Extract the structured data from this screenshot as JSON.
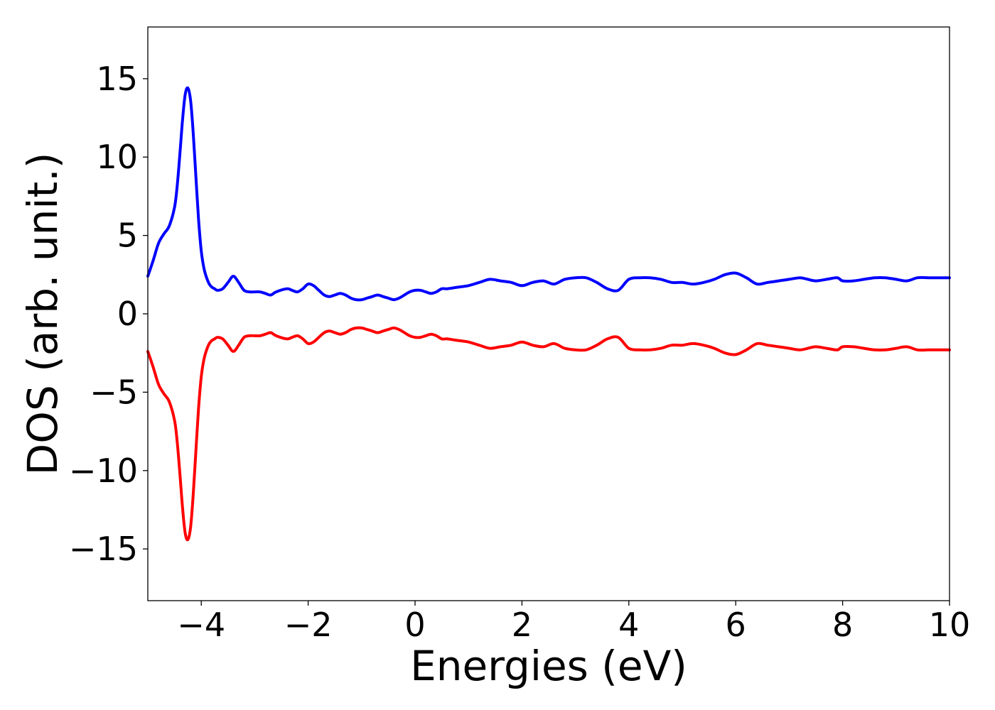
{
  "chart_data": {
    "type": "line",
    "title": "",
    "xlabel": "Energies (eV)",
    "ylabel": "DOS (arb. unit.)",
    "xlim": [
      -5,
      10
    ],
    "ylim": [
      -18.3,
      18.3
    ],
    "xticks": [
      -4,
      -2,
      0,
      2,
      4,
      6,
      8,
      10
    ],
    "xtick_labels": [
      "−4",
      "−2",
      "0",
      "2",
      "4",
      "6",
      "8",
      "10"
    ],
    "yticks": [
      15,
      10,
      5,
      0,
      -5,
      -10,
      -15
    ],
    "ytick_labels": [
      "15",
      "10",
      "5",
      "0",
      "−5",
      "−10",
      "−15"
    ],
    "grid": false,
    "series": [
      {
        "color": "#0000ff",
        "x": [
          -5.0,
          -4.9,
          -4.8,
          -4.7,
          -4.6,
          -4.5,
          -4.45,
          -4.4,
          -4.35,
          -4.3,
          -4.25,
          -4.2,
          -4.15,
          -4.1,
          -4.05,
          -4.0,
          -3.95,
          -3.9,
          -3.85,
          -3.8,
          -3.75,
          -3.7,
          -3.6,
          -3.5,
          -3.4,
          -3.3,
          -3.2,
          -3.1,
          -3.0,
          -2.9,
          -2.8,
          -2.7,
          -2.6,
          -2.4,
          -2.3,
          -2.2,
          -2.1,
          -2.0,
          -1.9,
          -1.8,
          -1.7,
          -1.6,
          -1.5,
          -1.4,
          -1.3,
          -1.2,
          -1.1,
          -1.0,
          -0.9,
          -0.8,
          -0.7,
          -0.6,
          -0.5,
          -0.4,
          -0.3,
          -0.2,
          -0.1,
          0.0,
          0.1,
          0.2,
          0.3,
          0.4,
          0.5,
          0.6,
          0.8,
          1.0,
          1.2,
          1.4,
          1.6,
          1.8,
          2.0,
          2.2,
          2.4,
          2.6,
          2.8,
          3.0,
          3.2,
          3.4,
          3.6,
          3.8,
          4.0,
          4.2,
          4.4,
          4.6,
          4.8,
          5.0,
          5.2,
          5.4,
          5.6,
          5.8,
          6.0,
          6.2,
          6.4,
          6.6,
          6.8,
          7.0,
          7.2,
          7.35,
          7.5,
          7.7,
          7.9,
          8.0,
          8.2,
          8.4,
          8.6,
          8.8,
          9.0,
          9.2,
          9.4,
          9.6,
          9.8,
          10.0
        ],
        "y": [
          2.4,
          3.4,
          4.5,
          5.1,
          5.6,
          6.8,
          8.2,
          10.2,
          12.4,
          14.0,
          14.4,
          13.6,
          11.5,
          8.7,
          6.0,
          4.0,
          2.9,
          2.3,
          1.9,
          1.7,
          1.6,
          1.5,
          1.6,
          2.0,
          2.4,
          2.0,
          1.5,
          1.4,
          1.4,
          1.4,
          1.3,
          1.2,
          1.4,
          1.6,
          1.5,
          1.4,
          1.6,
          1.9,
          1.8,
          1.5,
          1.2,
          1.1,
          1.2,
          1.3,
          1.2,
          1.0,
          0.9,
          0.9,
          1.0,
          1.1,
          1.2,
          1.1,
          1.0,
          0.9,
          1.0,
          1.2,
          1.4,
          1.5,
          1.5,
          1.4,
          1.3,
          1.4,
          1.6,
          1.6,
          1.7,
          1.8,
          2.0,
          2.2,
          2.1,
          2.0,
          1.8,
          2.0,
          2.1,
          1.9,
          2.2,
          2.3,
          2.3,
          2.0,
          1.6,
          1.5,
          2.2,
          2.3,
          2.3,
          2.2,
          2.0,
          2.0,
          1.9,
          2.0,
          2.2,
          2.5,
          2.6,
          2.3,
          1.9,
          2.0,
          2.1,
          2.2,
          2.3,
          2.2,
          2.1,
          2.2,
          2.3,
          2.1,
          2.1,
          2.2,
          2.3,
          2.3,
          2.2,
          2.1,
          2.3,
          2.3,
          2.3,
          2.3
        ]
      },
      {
        "color": "#ff0000",
        "x": [
          -5.0,
          -4.9,
          -4.8,
          -4.7,
          -4.6,
          -4.5,
          -4.45,
          -4.4,
          -4.35,
          -4.3,
          -4.25,
          -4.2,
          -4.15,
          -4.1,
          -4.05,
          -4.0,
          -3.95,
          -3.9,
          -3.85,
          -3.8,
          -3.75,
          -3.7,
          -3.6,
          -3.5,
          -3.4,
          -3.3,
          -3.2,
          -3.1,
          -3.0,
          -2.9,
          -2.8,
          -2.7,
          -2.6,
          -2.4,
          -2.3,
          -2.2,
          -2.1,
          -2.0,
          -1.9,
          -1.8,
          -1.7,
          -1.6,
          -1.5,
          -1.4,
          -1.3,
          -1.2,
          -1.1,
          -1.0,
          -0.9,
          -0.8,
          -0.7,
          -0.6,
          -0.5,
          -0.4,
          -0.3,
          -0.2,
          -0.1,
          0.0,
          0.1,
          0.2,
          0.3,
          0.4,
          0.5,
          0.6,
          0.8,
          1.0,
          1.2,
          1.4,
          1.6,
          1.8,
          2.0,
          2.2,
          2.4,
          2.6,
          2.8,
          3.0,
          3.2,
          3.4,
          3.6,
          3.8,
          4.0,
          4.2,
          4.4,
          4.6,
          4.8,
          5.0,
          5.2,
          5.4,
          5.6,
          5.8,
          6.0,
          6.2,
          6.4,
          6.6,
          6.8,
          7.0,
          7.2,
          7.35,
          7.5,
          7.7,
          7.9,
          8.0,
          8.2,
          8.4,
          8.6,
          8.8,
          9.0,
          9.2,
          9.4,
          9.6,
          9.8,
          10.0
        ],
        "y": [
          -2.4,
          -3.4,
          -4.5,
          -5.1,
          -5.6,
          -6.8,
          -8.2,
          -10.2,
          -12.4,
          -14.0,
          -14.4,
          -13.6,
          -11.5,
          -8.7,
          -6.0,
          -4.0,
          -2.9,
          -2.3,
          -1.9,
          -1.7,
          -1.6,
          -1.5,
          -1.6,
          -2.0,
          -2.4,
          -2.0,
          -1.5,
          -1.4,
          -1.4,
          -1.4,
          -1.3,
          -1.2,
          -1.4,
          -1.6,
          -1.5,
          -1.4,
          -1.6,
          -1.9,
          -1.8,
          -1.5,
          -1.2,
          -1.1,
          -1.2,
          -1.3,
          -1.2,
          -1.0,
          -0.9,
          -0.9,
          -1.0,
          -1.1,
          -1.2,
          -1.1,
          -1.0,
          -0.9,
          -1.0,
          -1.2,
          -1.4,
          -1.5,
          -1.5,
          -1.4,
          -1.3,
          -1.4,
          -1.6,
          -1.6,
          -1.7,
          -1.8,
          -2.0,
          -2.2,
          -2.1,
          -2.0,
          -1.8,
          -2.0,
          -2.1,
          -1.9,
          -2.2,
          -2.3,
          -2.3,
          -2.0,
          -1.6,
          -1.5,
          -2.2,
          -2.3,
          -2.3,
          -2.2,
          -2.0,
          -2.0,
          -1.9,
          -2.0,
          -2.2,
          -2.5,
          -2.6,
          -2.3,
          -1.9,
          -2.0,
          -2.1,
          -2.2,
          -2.3,
          -2.2,
          -2.1,
          -2.2,
          -2.3,
          -2.1,
          -2.1,
          -2.2,
          -2.3,
          -2.3,
          -2.2,
          -2.1,
          -2.3,
          -2.3,
          -2.3,
          -2.3
        ]
      }
    ]
  }
}
